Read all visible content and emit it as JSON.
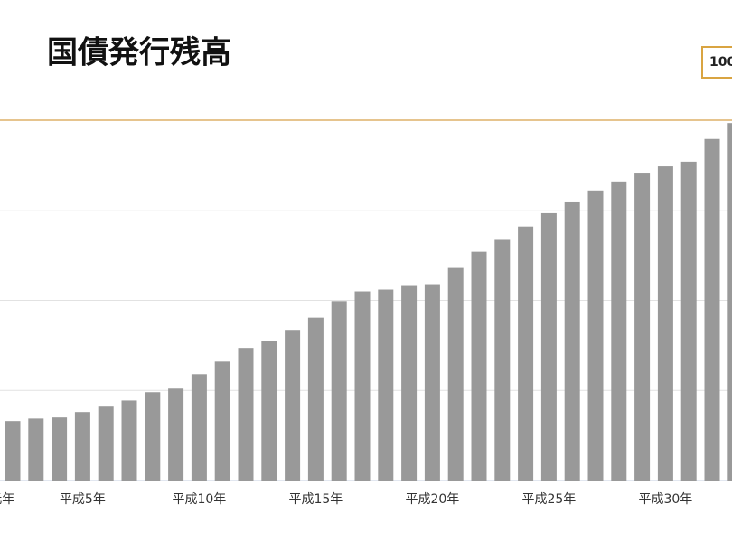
{
  "chart_data": {
    "type": "bar",
    "title": "国債発行残高",
    "unit_box": "100",
    "categories": [
      "平成元年",
      null,
      null,
      null,
      "平成5年",
      null,
      null,
      null,
      null,
      "平成10年",
      null,
      null,
      null,
      null,
      "平成15年",
      null,
      null,
      null,
      null,
      "平成20年",
      null,
      null,
      null,
      null,
      "平成25年",
      null,
      null,
      null,
      null,
      "平成30年",
      null,
      null,
      null
    ],
    "values": [
      null,
      165,
      172,
      175,
      190,
      205,
      222,
      245,
      255,
      295,
      330,
      368,
      388,
      418,
      452,
      498,
      525,
      530,
      540,
      545,
      590,
      635,
      668,
      705,
      742,
      772,
      805,
      830,
      852,
      872,
      885,
      948,
      992
    ],
    "color": "#999999",
    "ylim": [
      0,
      1000
    ],
    "yticks": [
      0,
      250,
      500,
      750,
      1000
    ],
    "grid": true
  }
}
